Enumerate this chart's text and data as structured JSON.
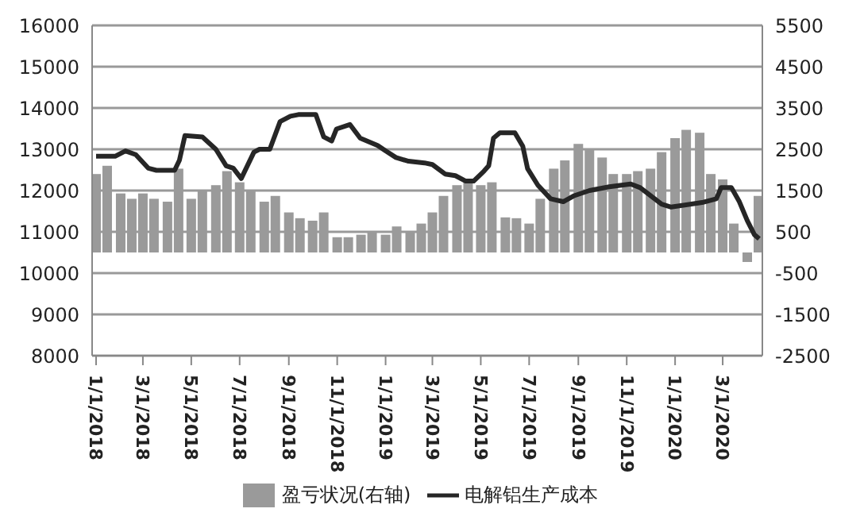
{
  "chart_data": {
    "type": "bar",
    "xlim": [
      "2017-12-27",
      "2020-04-20"
    ],
    "xticks": [
      {
        "value": "2018-01-01",
        "label": "1/1/2018"
      },
      {
        "value": "2018-03-01",
        "label": "3/1/2018"
      },
      {
        "value": "2018-05-01",
        "label": "5/1/2018"
      },
      {
        "value": "2018-07-01",
        "label": "7/1/2018"
      },
      {
        "value": "2018-09-01",
        "label": "9/1/2018"
      },
      {
        "value": "2018-11-01",
        "label": "11/1/2018"
      },
      {
        "value": "2019-01-01",
        "label": "1/1/2019"
      },
      {
        "value": "2019-03-01",
        "label": "3/1/2019"
      },
      {
        "value": "2019-05-01",
        "label": "5/1/2019"
      },
      {
        "value": "2019-07-01",
        "label": "7/1/2019"
      },
      {
        "value": "2019-09-01",
        "label": "9/1/2019"
      },
      {
        "value": "2019-11-01",
        "label": "11/1/2019"
      },
      {
        "value": "2020-01-01",
        "label": "1/1/2020"
      },
      {
        "value": "2020-03-01",
        "label": "3/1/2020"
      }
    ],
    "ylim": [
      8000,
      16000
    ],
    "yticks": [
      8000,
      9000,
      10000,
      11000,
      12000,
      13000,
      14000,
      15000,
      16000
    ],
    "y2lim": [
      -2500,
      5500
    ],
    "y2ticks": [
      -2500,
      -1500,
      -500,
      500,
      1500,
      2500,
      3500,
      4500,
      5500
    ],
    "grid": "y",
    "legend": "bottom",
    "series": [
      {
        "name": "盈亏状况(右轴)",
        "axis": "y2",
        "color": "#9a9a9a",
        "x": [
          "2018-01-01",
          "2018-01-15",
          "2018-02-01",
          "2018-02-15",
          "2018-03-01",
          "2018-03-15",
          "2018-04-01",
          "2018-04-15",
          "2018-05-01",
          "2018-05-15",
          "2018-06-01",
          "2018-06-15",
          "2018-07-01",
          "2018-07-15",
          "2018-08-01",
          "2018-08-15",
          "2018-09-01",
          "2018-09-15",
          "2018-10-01",
          "2018-10-15",
          "2018-11-01",
          "2018-11-15",
          "2018-12-01",
          "2018-12-15",
          "2019-01-01",
          "2019-01-15",
          "2019-02-01",
          "2019-02-15",
          "2019-03-01",
          "2019-03-15",
          "2019-04-01",
          "2019-04-15",
          "2019-05-01",
          "2019-05-15",
          "2019-06-01",
          "2019-06-15",
          "2019-07-01",
          "2019-07-15",
          "2019-08-01",
          "2019-08-15",
          "2019-09-01",
          "2019-09-15",
          "2019-10-01",
          "2019-10-15",
          "2019-11-01",
          "2019-11-15",
          "2019-12-01",
          "2019-12-15",
          "2020-01-01",
          "2020-01-15",
          "2020-02-01",
          "2020-02-15",
          "2020-03-01",
          "2020-03-15",
          "2020-04-01",
          "2020-04-15"
        ],
        "values": [
          1900,
          2100,
          1430,
          1300,
          1430,
          1300,
          1230,
          2030,
          1300,
          1500,
          1630,
          1970,
          1700,
          1500,
          1230,
          1370,
          970,
          830,
          770,
          970,
          370,
          370,
          430,
          500,
          430,
          630,
          500,
          700,
          970,
          1370,
          1630,
          1700,
          1630,
          1700,
          850,
          830,
          700,
          1300,
          2030,
          2230,
          2630,
          2500,
          2300,
          1900,
          1900,
          1970,
          2030,
          2430,
          2770,
          2970,
          2900,
          1900,
          1770,
          700,
          -230,
          1370
        ]
      },
      {
        "name": "电解铝生产成本",
        "type": "line",
        "color": "#262626",
        "marker": "none",
        "line_style": "solid",
        "x": [
          "2018-01-01",
          "2018-01-25",
          "2018-02-07",
          "2018-02-20",
          "2018-03-08",
          "2018-03-18",
          "2018-04-10",
          "2018-04-16",
          "2018-04-23",
          "2018-05-15",
          "2018-06-01",
          "2018-06-14",
          "2018-06-23",
          "2018-07-03",
          "2018-07-19",
          "2018-07-26",
          "2018-08-08",
          "2018-08-21",
          "2018-09-03",
          "2018-09-13",
          "2018-10-05",
          "2018-10-15",
          "2018-10-25",
          "2018-10-31",
          "2018-11-17",
          "2018-11-30",
          "2018-12-22",
          "2019-01-01",
          "2019-01-14",
          "2019-01-30",
          "2019-02-19",
          "2019-03-01",
          "2019-03-17",
          "2019-03-30",
          "2019-04-12",
          "2019-04-22",
          "2019-05-05",
          "2019-05-11",
          "2019-05-17",
          "2019-05-25",
          "2019-06-13",
          "2019-06-23",
          "2019-06-29",
          "2019-07-12",
          "2019-07-28",
          "2019-08-13",
          "2019-08-26",
          "2019-09-15",
          "2019-10-10",
          "2019-11-06",
          "2019-11-18",
          "2019-12-15",
          "2019-12-27",
          "2020-02-04",
          "2020-02-22",
          "2020-02-28",
          "2020-03-12",
          "2020-03-22",
          "2020-04-01",
          "2020-04-10",
          "2020-04-16"
        ],
        "values": [
          12830,
          12830,
          12960,
          12870,
          12540,
          12490,
          12490,
          12730,
          13330,
          13300,
          13000,
          12600,
          12540,
          12290,
          12930,
          13000,
          13000,
          13670,
          13800,
          13840,
          13840,
          13300,
          13200,
          13490,
          13600,
          13270,
          13090,
          12960,
          12800,
          12710,
          12670,
          12630,
          12400,
          12360,
          12230,
          12230,
          12470,
          12600,
          13270,
          13400,
          13400,
          13070,
          12530,
          12130,
          11800,
          11730,
          11870,
          12000,
          12090,
          12160,
          12070,
          11670,
          11600,
          11710,
          11800,
          12070,
          12070,
          11730,
          11270,
          10930,
          10830
        ]
      }
    ]
  }
}
